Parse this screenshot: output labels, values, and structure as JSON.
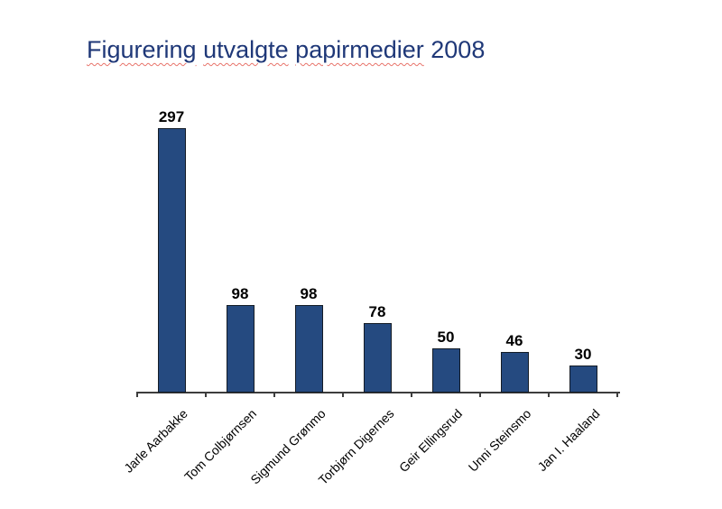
{
  "slide": {
    "background": "#ffffff"
  },
  "title": {
    "text": "Figurering utvalgte papirmedier 2008",
    "color": "#1f3878",
    "spellcheck_underline_color": "#e8736a",
    "segments": [
      {
        "text": "Figurering",
        "misspelled": true
      },
      {
        "text": "utvalgte",
        "misspelled": true
      },
      {
        "text": "papirmedier",
        "misspelled": true
      },
      {
        "text": "2008",
        "misspelled": false
      }
    ]
  },
  "chart_data": {
    "type": "bar",
    "title": "Figurering utvalgte papirmedier 2008",
    "categories": [
      "Jarle Aarbakke",
      "Tom Colbjørnsen",
      "Sigmund Grønmo",
      "Torbjørn Digernes",
      "Geir Ellingsrud",
      "Unni Steinsmo",
      "Jan I. Haaland"
    ],
    "values": [
      297,
      98,
      98,
      78,
      50,
      46,
      30
    ],
    "xlabel": "",
    "ylabel": "",
    "ylim": [
      0,
      300
    ],
    "grid": false,
    "legend": false,
    "data_labels_shown": true,
    "category_label_rotation_deg": -45,
    "bar_color": "#254a80",
    "bar_border_color": "#141c26",
    "axis_color": "#3d3d3d",
    "text_color": "#000000"
  }
}
